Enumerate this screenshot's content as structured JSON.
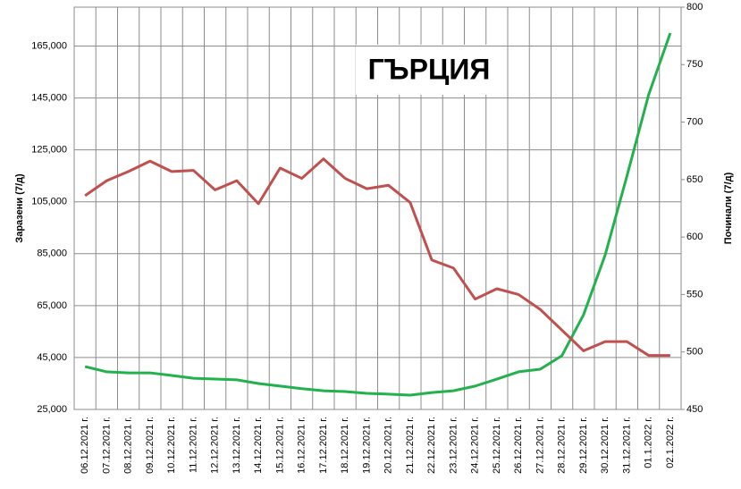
{
  "chart_data": {
    "type": "line",
    "title": "ГЪРЦИЯ",
    "y_label": "Заразени (7/д)",
    "y2_label": "Починали (7/д)",
    "categories": [
      "06.12.2021 г.",
      "07.12.2021 г.",
      "08.12.2021 г.",
      "09.12.2021 г.",
      "10.12.2021 г.",
      "11.12.2021 г.",
      "12.12.2021 г.",
      "13.12.2021 г.",
      "14.12.2021 г.",
      "15.12.2021 г.",
      "16.12.2021 г.",
      "17.12.2021 г.",
      "18.12.2021 г.",
      "19.12.2021 г.",
      "20.12.2021 г.",
      "21.12.2021 г.",
      "22.12.2021 г.",
      "23.12.2021 г.",
      "24.12.2021 г.",
      "25.12.2021 г.",
      "26.12.2021 г.",
      "27.12.2021 г.",
      "28.12.2021 г.",
      "29.12.2021 г.",
      "30.12.2021 г.",
      "31.12.2021 г.",
      "01.1.2022 г.",
      "02.1.2022 г."
    ],
    "series": [
      {
        "color": "#22b14c",
        "axis": "y",
        "values": [
          41500,
          39500,
          39100,
          39100,
          38100,
          37000,
          36700,
          36400,
          35000,
          34000,
          33000,
          32200,
          31900,
          31200,
          30900,
          30500,
          31500,
          32200,
          34000,
          36700,
          39500,
          40500,
          45700,
          61500,
          84600,
          114900,
          146200,
          170000
        ]
      },
      {
        "color": "#c0504d",
        "axis": "y2",
        "values": [
          636,
          649,
          657,
          666,
          657,
          658,
          641,
          649,
          629,
          660,
          651,
          668,
          651,
          642,
          645,
          630,
          580,
          573,
          546,
          555,
          550,
          537,
          519,
          501,
          509,
          509,
          497,
          497
        ]
      }
    ],
    "ylim": [
      25000,
      180000
    ],
    "yticks": [
      {
        "value": 25000,
        "label": "25,000"
      },
      {
        "value": 45000,
        "label": "45,000"
      },
      {
        "value": 65000,
        "label": "65,000"
      },
      {
        "value": 85000,
        "label": "85,000"
      },
      {
        "value": 105000,
        "label": "105,000"
      },
      {
        "value": 125000,
        "label": "125,000"
      },
      {
        "value": 145000,
        "label": "145,000"
      },
      {
        "value": 165000,
        "label": "165,000"
      }
    ],
    "y2lim": [
      450,
      800
    ],
    "y2ticks": [
      450,
      500,
      550,
      600,
      650,
      700,
      750,
      800
    ],
    "grid": true
  }
}
